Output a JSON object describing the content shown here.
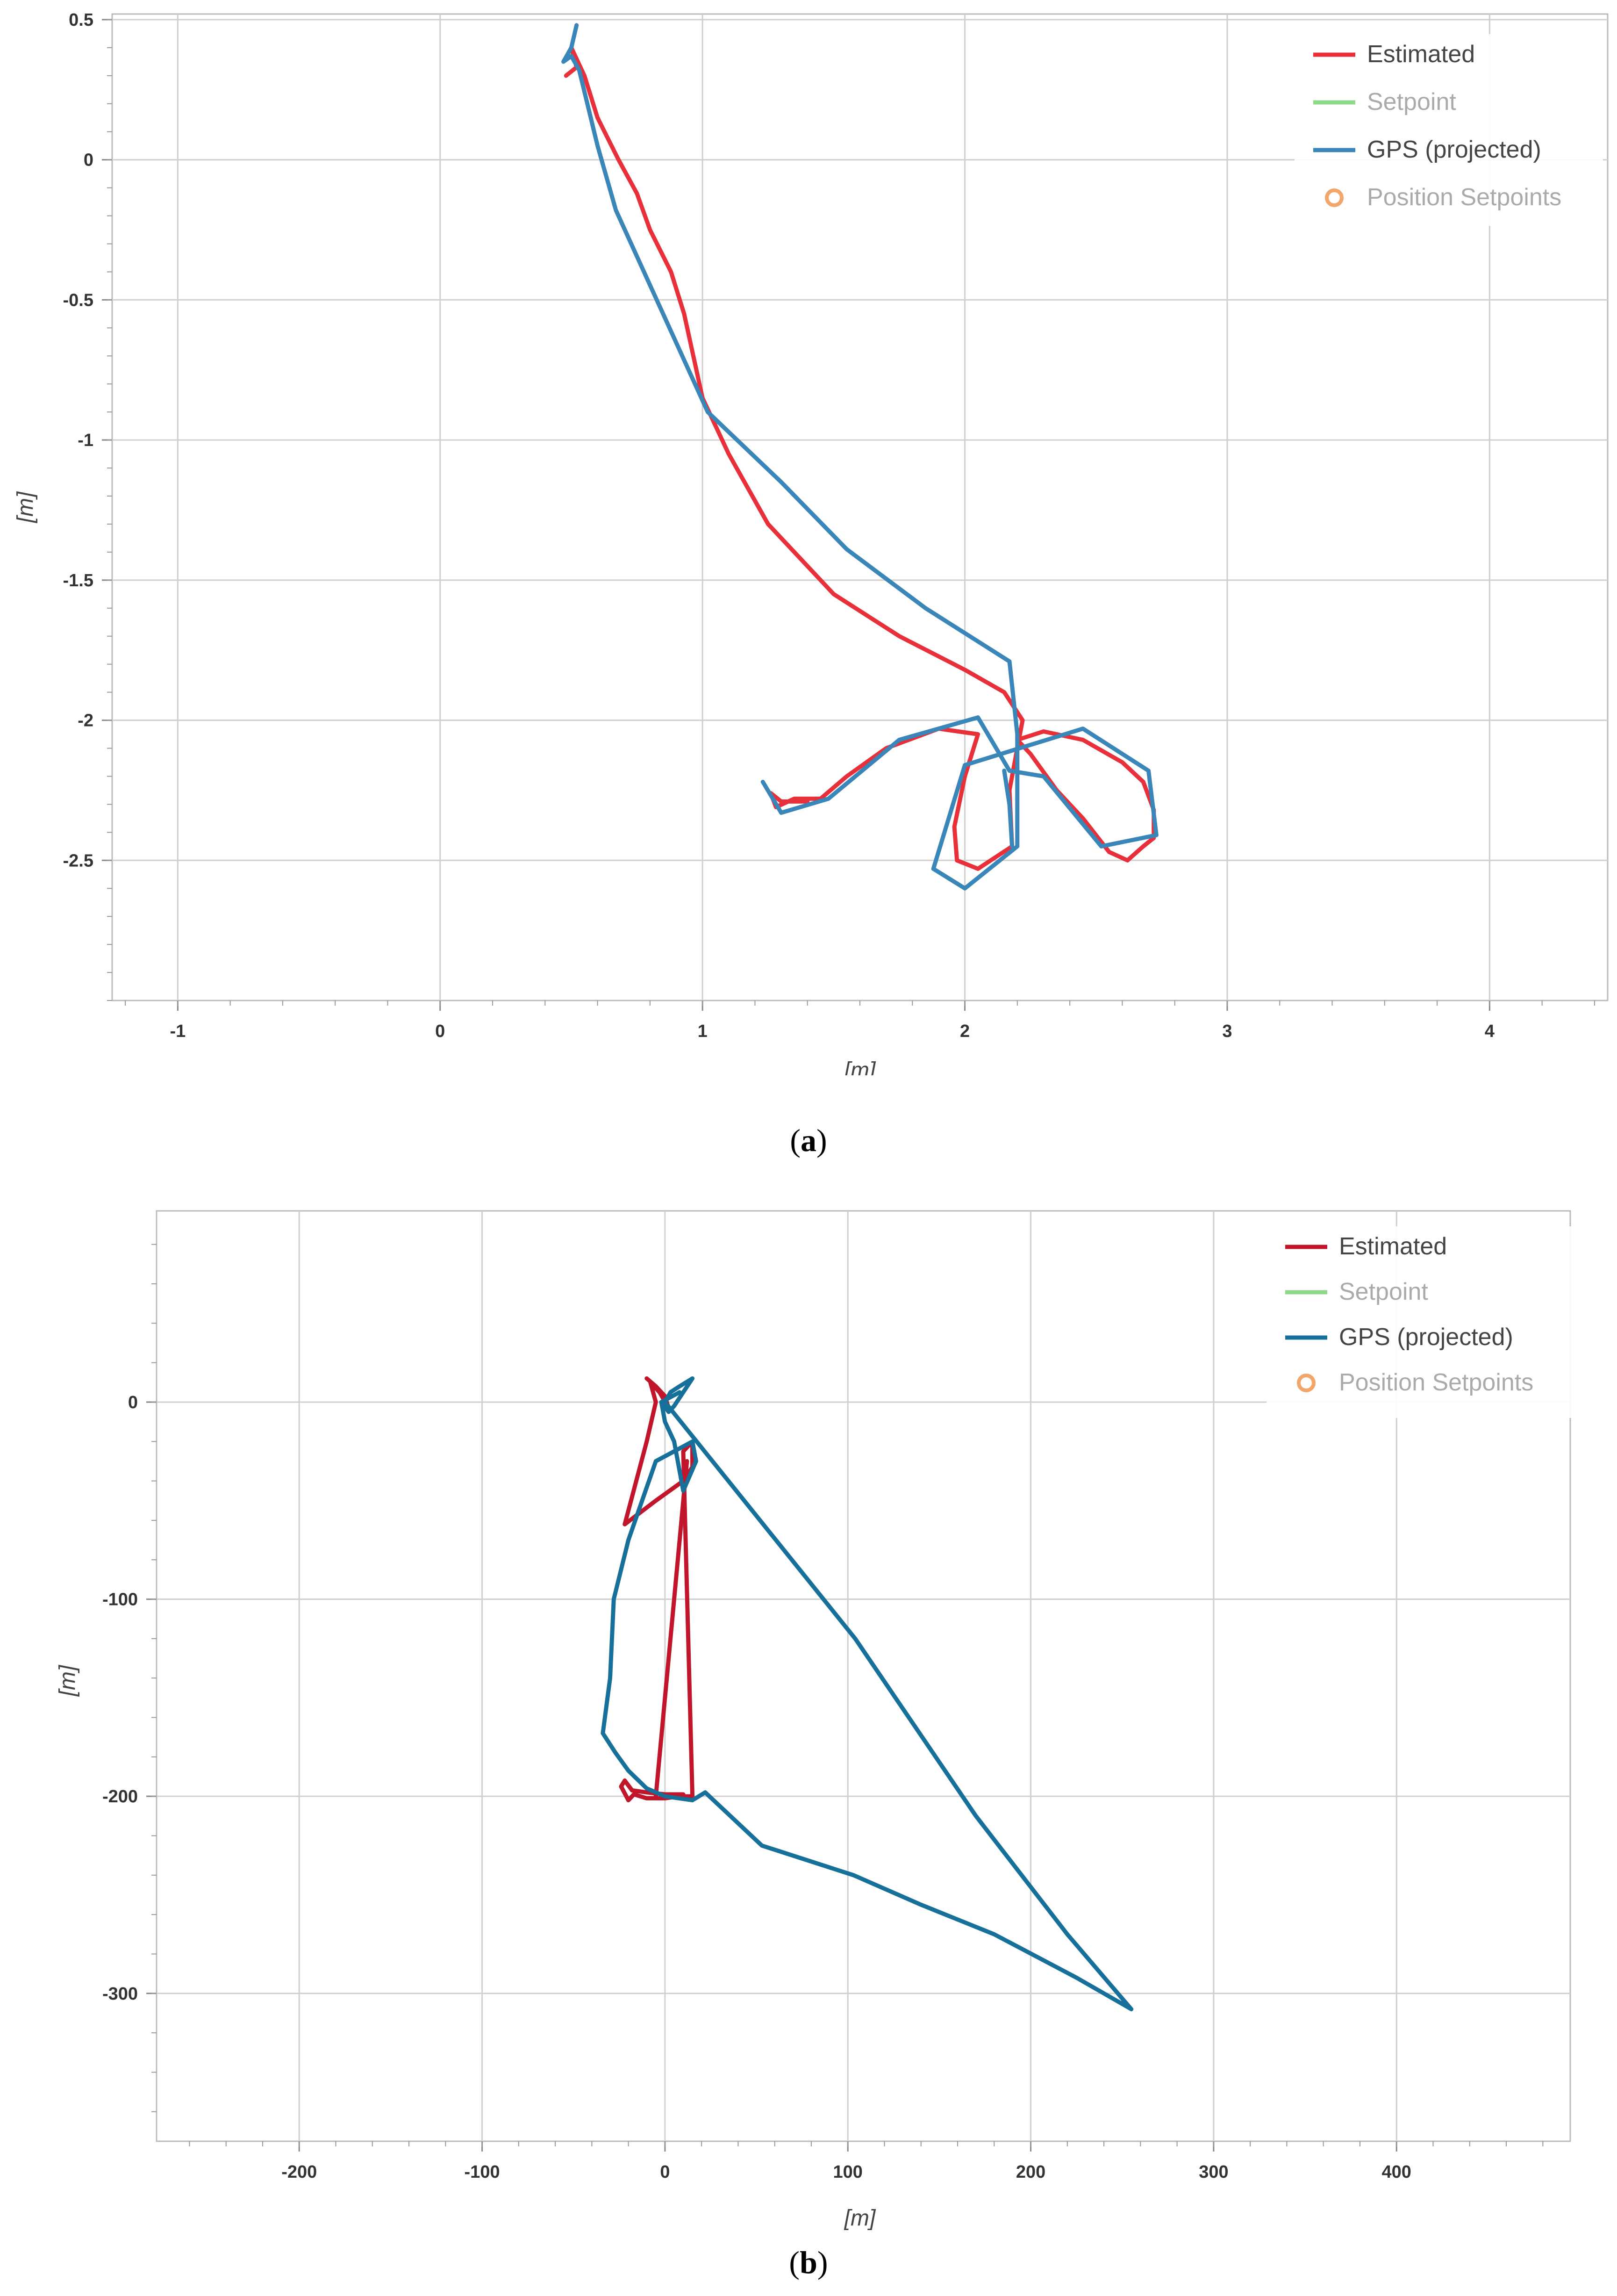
{
  "figure": {
    "captions": [
      {
        "letter": "a",
        "open": "(",
        "close": ")"
      },
      {
        "letter": "b",
        "open": "(",
        "close": ")"
      }
    ]
  },
  "chart_data": [
    {
      "panel": "a",
      "type": "line",
      "title": "",
      "xlabel": "[m]",
      "ylabel": "[m]",
      "xlim": [
        -1.25,
        4.45
      ],
      "ylim": [
        -3.0,
        0.52
      ],
      "xticks": [
        -1,
        0,
        1,
        2,
        3,
        4
      ],
      "xtick_labels": [
        "-1",
        "0",
        "1",
        "2",
        "3",
        "4"
      ],
      "yticks": [
        0.5,
        0,
        -0.5,
        -1,
        -1.5,
        -2,
        -2.5
      ],
      "ytick_labels": [
        "0.5",
        "0",
        "-0.5",
        "-1",
        "-1.5",
        "-2",
        "-2.5"
      ],
      "grid": true,
      "legend_position": "top-right",
      "legend": [
        {
          "label": "Estimated",
          "color": "#e8303a",
          "kind": "line",
          "active": true
        },
        {
          "label": "Setpoint",
          "color": "#8fd98a",
          "kind": "line",
          "active": false
        },
        {
          "label": "GPS (projected)",
          "color": "#3a86b8",
          "kind": "line",
          "active": true
        },
        {
          "label": "Position Setpoints",
          "color": "#f2a66a",
          "kind": "circle",
          "active": false
        }
      ],
      "series": [
        {
          "name": "Estimated",
          "color": "#e8303a",
          "points": [
            [
              0.48,
              0.3
            ],
            [
              0.52,
              0.33
            ],
            [
              0.5,
              0.4
            ],
            [
              0.55,
              0.3
            ],
            [
              0.6,
              0.15
            ],
            [
              0.68,
              0.0
            ],
            [
              0.75,
              -0.12
            ],
            [
              0.8,
              -0.25
            ],
            [
              0.88,
              -0.4
            ],
            [
              0.93,
              -0.55
            ],
            [
              1.0,
              -0.85
            ],
            [
              1.1,
              -1.05
            ],
            [
              1.25,
              -1.3
            ],
            [
              1.5,
              -1.55
            ],
            [
              1.75,
              -1.7
            ],
            [
              2.0,
              -1.82
            ],
            [
              2.15,
              -1.9
            ],
            [
              2.22,
              -2.0
            ],
            [
              2.2,
              -2.1
            ],
            [
              2.17,
              -2.25
            ],
            [
              2.18,
              -2.45
            ],
            [
              2.05,
              -2.53
            ],
            [
              1.97,
              -2.5
            ],
            [
              1.96,
              -2.38
            ],
            [
              2.0,
              -2.2
            ],
            [
              2.05,
              -2.05
            ],
            [
              1.9,
              -2.03
            ],
            [
              1.7,
              -2.1
            ],
            [
              1.55,
              -2.2
            ],
            [
              1.45,
              -2.28
            ],
            [
              1.35,
              -2.28
            ],
            [
              1.28,
              -2.31
            ],
            [
              1.26,
              -2.26
            ],
            [
              1.3,
              -2.29
            ],
            [
              1.4,
              -2.29
            ]
          ]
        },
        {
          "name": "Estimated",
          "color": "#e8303a",
          "points": [
            [
              2.2,
              -2.07
            ],
            [
              2.3,
              -2.04
            ],
            [
              2.45,
              -2.07
            ],
            [
              2.6,
              -2.15
            ],
            [
              2.68,
              -2.22
            ],
            [
              2.72,
              -2.32
            ],
            [
              2.72,
              -2.42
            ],
            [
              2.68,
              -2.45
            ],
            [
              2.62,
              -2.5
            ],
            [
              2.55,
              -2.47
            ],
            [
              2.45,
              -2.35
            ],
            [
              2.35,
              -2.25
            ],
            [
              2.25,
              -2.12
            ],
            [
              2.2,
              -2.07
            ]
          ]
        },
        {
          "name": "GPS (projected)",
          "color": "#3a86b8",
          "points": [
            [
              0.52,
              0.48
            ],
            [
              0.5,
              0.4
            ],
            [
              0.47,
              0.35
            ],
            [
              0.5,
              0.37
            ],
            [
              0.53,
              0.32
            ],
            [
              0.6,
              0.05
            ],
            [
              0.67,
              -0.18
            ],
            [
              0.85,
              -0.55
            ],
            [
              1.02,
              -0.9
            ],
            [
              1.3,
              -1.15
            ],
            [
              1.55,
              -1.39
            ],
            [
              1.85,
              -1.6
            ],
            [
              2.17,
              -1.79
            ],
            [
              2.2,
              -2.05
            ],
            [
              2.2,
              -2.2
            ],
            [
              2.2,
              -2.45
            ],
            [
              2.0,
              -2.6
            ],
            [
              1.88,
              -2.53
            ],
            [
              2.0,
              -2.16
            ],
            [
              2.45,
              -2.03
            ],
            [
              2.7,
              -2.18
            ],
            [
              2.73,
              -2.41
            ],
            [
              2.52,
              -2.45
            ],
            [
              2.3,
              -2.2
            ],
            [
              2.17,
              -2.18
            ],
            [
              2.05,
              -1.99
            ],
            [
              1.75,
              -2.07
            ],
            [
              1.48,
              -2.28
            ],
            [
              1.3,
              -2.33
            ],
            [
              1.23,
              -2.22
            ]
          ]
        },
        {
          "name": "GPS (projected)",
          "color": "#3a86b8",
          "points": [
            [
              2.15,
              -2.18
            ],
            [
              2.17,
              -2.3
            ],
            [
              2.18,
              -2.45
            ]
          ]
        }
      ]
    },
    {
      "panel": "b",
      "type": "line",
      "title": "",
      "xlabel": "[m]",
      "ylabel": "[m]",
      "xlim": [
        -278,
        495
      ],
      "ylim": [
        -375,
        97
      ],
      "xticks": [
        -200,
        -100,
        0,
        100,
        200,
        300,
        400
      ],
      "xtick_labels": [
        "-200",
        "-100",
        "0",
        "100",
        "200",
        "300",
        "400"
      ],
      "yticks": [
        0,
        -100,
        -200,
        -300
      ],
      "ytick_labels": [
        "0",
        "-100",
        "-200",
        "-300"
      ],
      "grid": true,
      "legend_position": "top-right",
      "legend": [
        {
          "label": "Estimated",
          "color": "#c0152a",
          "kind": "line",
          "active": true
        },
        {
          "label": "Setpoint",
          "color": "#8fd98a",
          "kind": "line",
          "active": false
        },
        {
          "label": "GPS (projected)",
          "color": "#16709a",
          "kind": "line",
          "active": true
        },
        {
          "label": "Position Setpoints",
          "color": "#f2a66a",
          "kind": "circle",
          "active": false
        }
      ],
      "series": [
        {
          "name": "Estimated",
          "color": "#c0152a",
          "points": [
            [
              -10,
              12
            ],
            [
              -5,
              8
            ],
            [
              0,
              3
            ],
            [
              2,
              -3
            ],
            [
              -3,
              5
            ],
            [
              -8,
              10
            ],
            [
              -5,
              0
            ],
            [
              -10,
              -20
            ],
            [
              -22,
              -62
            ],
            [
              -5,
              -50
            ],
            [
              10,
              -40
            ],
            [
              15,
              -33
            ],
            [
              15,
              -20
            ],
            [
              10,
              -25
            ],
            [
              15,
              -200
            ],
            [
              8,
              -200
            ],
            [
              0,
              -201
            ],
            [
              -10,
              -201
            ],
            [
              -17,
              -199
            ],
            [
              -20,
              -202
            ],
            [
              -24,
              -195
            ],
            [
              -22,
              -192
            ],
            [
              -18,
              -197
            ],
            [
              -10,
              -198
            ],
            [
              0,
              -199
            ],
            [
              10,
              -199
            ]
          ]
        },
        {
          "name": "Estimated",
          "color": "#c0152a",
          "points": [
            [
              12,
              -30
            ],
            [
              5,
              -100
            ],
            [
              -5,
              -200
            ]
          ]
        },
        {
          "name": "GPS (projected)",
          "color": "#16709a",
          "points": [
            [
              -2,
              0
            ],
            [
              2,
              -5
            ],
            [
              5,
              -2
            ],
            [
              10,
              5
            ],
            [
              15,
              12
            ],
            [
              8,
              8
            ],
            [
              3,
              5
            ],
            [
              0,
              0
            ],
            [
              104,
              -120
            ],
            [
              170,
              -210
            ],
            [
              220,
              -270
            ],
            [
              255,
              -308
            ],
            [
              225,
              -292
            ],
            [
              180,
              -270
            ],
            [
              140,
              -255
            ],
            [
              103,
              -240
            ],
            [
              53,
              -225
            ],
            [
              22,
              -198
            ],
            [
              15,
              -202
            ],
            [
              0,
              -200
            ],
            [
              -10,
              -196
            ],
            [
              -20,
              -187
            ],
            [
              -27,
              -178
            ],
            [
              -34,
              -168
            ],
            [
              -30,
              -140
            ],
            [
              -28,
              -100
            ],
            [
              -20,
              -70
            ],
            [
              -5,
              -30
            ],
            [
              5,
              -25
            ],
            [
              15,
              -20
            ],
            [
              17,
              -30
            ],
            [
              10,
              -45
            ],
            [
              5,
              -20
            ],
            [
              0,
              -10
            ],
            [
              -2,
              0
            ],
            [
              4,
              3
            ],
            [
              8,
              5
            ]
          ]
        }
      ]
    }
  ]
}
